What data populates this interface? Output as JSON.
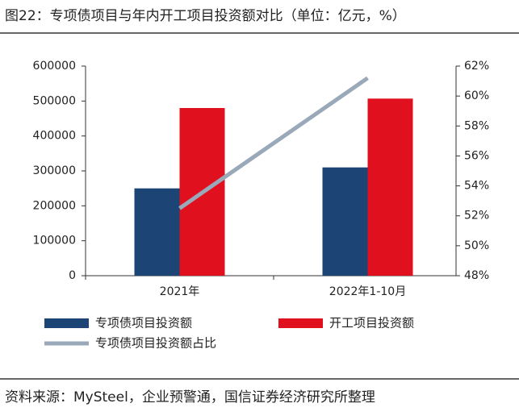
{
  "chart_data": {
    "type": "bar",
    "title": "图22：专项债项目与年内开工项目投资额对比（单位：亿元，%）",
    "categories": [
      "2021年",
      "2022年1-10月"
    ],
    "series": [
      {
        "name": "专项债项目投资额",
        "color": "#1c4475",
        "values": [
          250000,
          310000
        ]
      },
      {
        "name": "开工项目投资额",
        "color": "#e0101e",
        "values": [
          480000,
          507000
        ]
      },
      {
        "name": "专项债项目投资额占比",
        "color": "#9aa9b9",
        "type": "line",
        "axis": "y2",
        "values": [
          52.5,
          61.2
        ]
      }
    ],
    "ylim": [
      0,
      600000
    ],
    "yticks": [
      0,
      100000,
      200000,
      300000,
      400000,
      500000,
      600000
    ],
    "y2lim": [
      48,
      62
    ],
    "y2ticks": [
      {
        "value": 48,
        "label": "48%"
      },
      {
        "value": 50,
        "label": "50%"
      },
      {
        "value": 52,
        "label": "52%"
      },
      {
        "value": 54,
        "label": "54%"
      },
      {
        "value": 56,
        "label": "56%"
      },
      {
        "value": 58,
        "label": "58%"
      },
      {
        "value": 60,
        "label": "60%"
      },
      {
        "value": 62,
        "label": "62%"
      }
    ],
    "source": "资料来源：MySteel，企业预警通，国信证券经济研究所整理"
  }
}
